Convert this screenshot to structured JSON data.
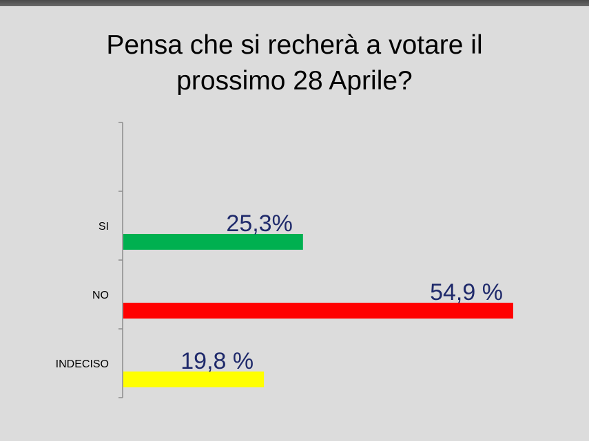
{
  "title": {
    "line1": "Pensa che si recherà a votare il",
    "line2": "prossimo 28 Aprile?"
  },
  "colors": {
    "background": "#dcdcdc",
    "label_text": "#1f2a6b",
    "bar_si": "#00b050",
    "bar_no": "#ff0000",
    "bar_indeciso": "#ffff00"
  },
  "chart_data": {
    "type": "bar",
    "orientation": "horizontal",
    "categories": [
      "SI",
      "NO",
      "INDECISO"
    ],
    "values": [
      25.3,
      54.9,
      19.8
    ],
    "value_labels": [
      "25,3%",
      "54,9 %",
      "19,8 %"
    ],
    "bar_colors": [
      "#00b050",
      "#ff0000",
      "#ffff00"
    ],
    "title": "Pensa che si recherà a votare il prossimo 28 Aprile?",
    "xlabel": "",
    "ylabel": "",
    "xlim": [
      0,
      55
    ],
    "grid": false,
    "legend": "none"
  }
}
